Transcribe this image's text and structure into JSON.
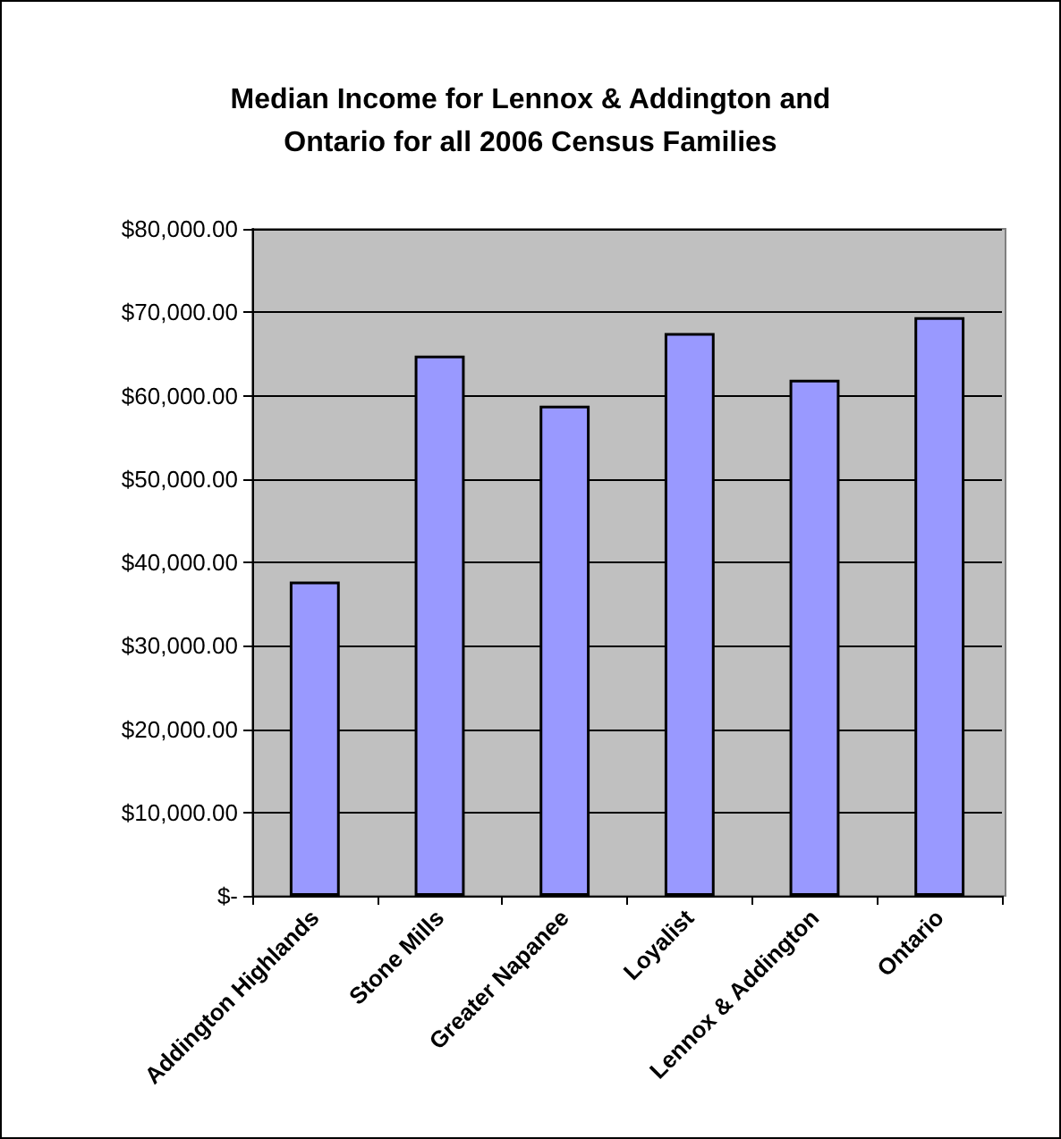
{
  "chart_data": {
    "type": "bar",
    "title": "Median Income for Lennox & Addington and\nOntario for all 2006 Census Families",
    "categories": [
      "Addington Highlands",
      "Stone Mills",
      "Greater Napanee",
      "Loyalist",
      "Lennox & Addington",
      "Ontario"
    ],
    "values": [
      37700,
      64800,
      58800,
      67500,
      61900,
      69400
    ],
    "color": "#9999ff",
    "ylim": [
      0,
      80000
    ],
    "yticks": [
      {
        "value": 0,
        "label": "$-"
      },
      {
        "value": 10000,
        "label": "$10,000.00"
      },
      {
        "value": 20000,
        "label": "$20,000.00"
      },
      {
        "value": 30000,
        "label": "$30,000.00"
      },
      {
        "value": 40000,
        "label": "$40,000.00"
      },
      {
        "value": 50000,
        "label": "$50,000.00"
      },
      {
        "value": 60000,
        "label": "$60,000.00"
      },
      {
        "value": 70000,
        "label": "$70,000.00"
      },
      {
        "value": 80000,
        "label": "$80,000.00"
      }
    ],
    "grid": "y"
  }
}
